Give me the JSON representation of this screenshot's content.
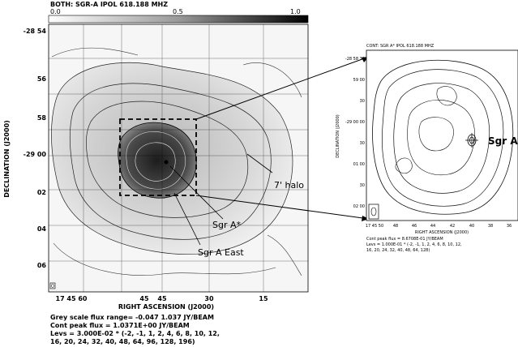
{
  "left_map": {
    "title": "BOTH: SGR-A  IPOL  618.188 MHZ",
    "colorbar": {
      "ticks": [
        "0.0",
        "0.5",
        "1.0"
      ]
    },
    "y_ticks": [
      "-28 54",
      "56",
      "58",
      "-29 00",
      "02",
      "04",
      "06"
    ],
    "x_ticks": [
      "17 45 60",
      "45",
      "30",
      "15"
    ],
    "x_tick_extra": "45",
    "ylabel": "DECLINATION (J2000)",
    "xlabel": "RIGHT ASCENSION (J2000)",
    "annotations": [
      "7' halo",
      "Sgr A*",
      "Sgr A East"
    ],
    "footer": [
      "Grey scale flux range= -0.047 1.037 JY/BEAM",
      "Cont peak flux = 1.0371E+00 JY/BEAM",
      "Levs = 3.000E-02 * (-2, -1, 1, 2, 4, 6, 8, 10, 12,",
      "16, 20, 24, 32, 40, 48, 64, 96, 128, 196)"
    ]
  },
  "right_map": {
    "title": "CONT: SGR A*  IPOL  618.188 MHZ",
    "y_ticks": [
      "-28 58 30",
      "59 00",
      "30",
      "-29 00 00",
      "30",
      "01 00",
      "30",
      "02 00"
    ],
    "x_ticks": [
      "17 45 50",
      "48",
      "46",
      "44",
      "42",
      "40",
      "38",
      "36"
    ],
    "ylabel": "DECLINATION (J2000)",
    "xlabel": "RIGHT ASCENSION (J2000)",
    "annotation": "Sgr A",
    "footer": [
      "Cont peak flux = 8.6708E-01 JY/BEAM",
      "Levs = 1.000E-01 * (-2, -1, 1, 2, 4, 6, 8, 10, 12,",
      "16, 20, 24, 32, 40, 48, 64, 128)"
    ]
  }
}
